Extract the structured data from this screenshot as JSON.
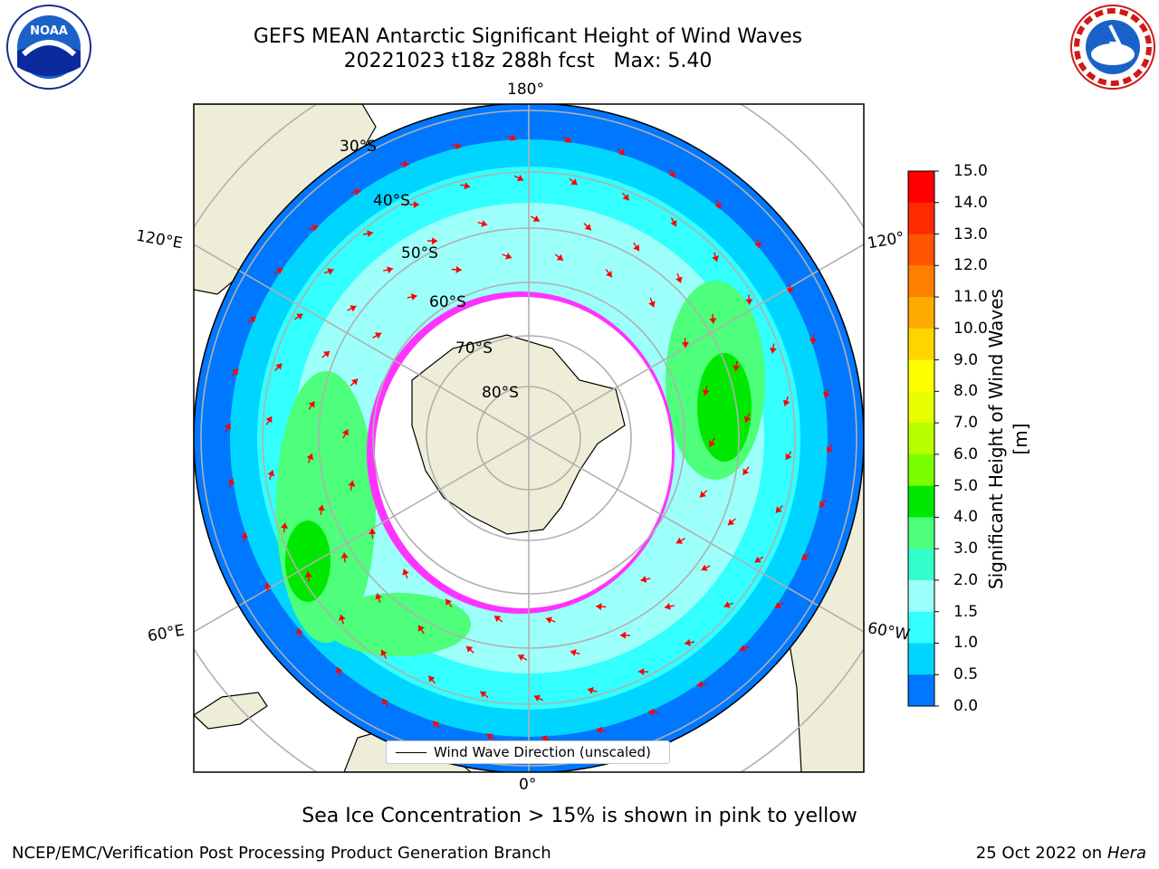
{
  "title": {
    "line1": "GEFS MEAN Antarctic Significant Height of Wind Waves",
    "line2": "20221023 t18z 288h fcst   Max: 5.40"
  },
  "logos": {
    "left": "noaa-logo",
    "right": "national-weather-service-logo",
    "left_text": "NOAA",
    "right_text": "NATIONAL WEATHER SERVICE"
  },
  "map": {
    "projection": "south-polar-stereographic",
    "lon_labels": {
      "top": "180°",
      "bottom": "0°",
      "left_upper": "120°E",
      "left_lower": "60°E",
      "right_upper": "120°",
      "right_lower": "60°W"
    },
    "lat_labels": [
      "30°S",
      "40°S",
      "50°S",
      "60°S",
      "70°S",
      "80°S"
    ],
    "legend": "Wind Wave Direction (unscaled)",
    "colors": {
      "land": "#eeeed8",
      "ocean_outer": "#0077ff",
      "grid": "#b0b0b0",
      "arrow": "#ff0000",
      "sea_ice": "#ff33ff"
    }
  },
  "colorbar": {
    "label": "Significant Height of Wind Waves [m]",
    "ticks": [
      "15.0",
      "14.0",
      "13.0",
      "12.0",
      "11.0",
      "10.0",
      "9.0",
      "8.0",
      "7.0",
      "6.0",
      "5.0",
      "4.0",
      "3.0",
      "2.0",
      "1.5",
      "1.0",
      "0.5",
      "0.0"
    ],
    "colors": [
      "#ff0000",
      "#ff2a00",
      "#ff5500",
      "#ff8000",
      "#ffaa00",
      "#ffd500",
      "#ffff00",
      "#e8ff00",
      "#b8ff00",
      "#7aff00",
      "#00e800",
      "#4dff7a",
      "#33ffcc",
      "#9dfffa",
      "#33ffff",
      "#00d5ff",
      "#0077ff",
      "#0000ff"
    ]
  },
  "footnote": "Sea Ice Concentration > 15% is shown in pink to yellow",
  "footer": {
    "left": "NCEP/EMC/Verification Post Processing Product Generation Branch",
    "right_prefix": "25 Oct 2022 on ",
    "right_host": "Hera"
  }
}
